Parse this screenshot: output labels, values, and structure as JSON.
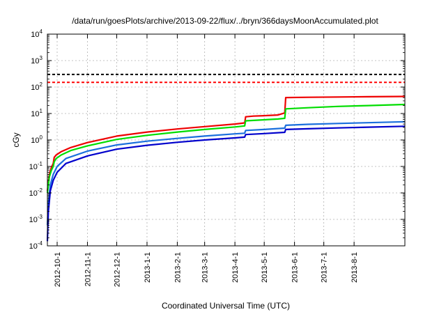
{
  "chart_data": {
    "type": "line",
    "title": "/data/run/goesPlots/archive/2013-09-22/flux/../bryn/366daysMoonAccumulated.plot",
    "xlabel": "Coordinated Universal Time (UTC)",
    "ylabel": "cGy",
    "y_scale": "log",
    "ylim": [
      0.0001,
      10000
    ],
    "xlim": [
      "2012-09-21",
      "2013-09-22"
    ],
    "grid": true,
    "y_ticks": [
      {
        "value": 0.0001,
        "mantissa": "10",
        "exp": "-4"
      },
      {
        "value": 0.001,
        "mantissa": "10",
        "exp": "-3"
      },
      {
        "value": 0.01,
        "mantissa": "10",
        "exp": "-2"
      },
      {
        "value": 0.1,
        "mantissa": "10",
        "exp": "-1"
      },
      {
        "value": 1,
        "mantissa": "10",
        "exp": "0"
      },
      {
        "value": 10,
        "mantissa": "10",
        "exp": "1"
      },
      {
        "value": 100,
        "mantissa": "10",
        "exp": "2"
      },
      {
        "value": 1000,
        "mantissa": "10",
        "exp": "3"
      },
      {
        "value": 10000,
        "mantissa": "10",
        "exp": "4"
      }
    ],
    "x_ticks": [
      {
        "date": "2012-10-01",
        "label": "2012-10-1"
      },
      {
        "date": "2012-11-01",
        "label": "2012-11-1"
      },
      {
        "date": "2012-12-01",
        "label": "2012-12-1"
      },
      {
        "date": "2013-01-01",
        "label": "2013-1-1"
      },
      {
        "date": "2013-02-01",
        "label": "2013-2-1"
      },
      {
        "date": "2013-03-01",
        "label": "2013-3-1"
      },
      {
        "date": "2013-04-01",
        "label": "2013-4-1"
      },
      {
        "date": "2013-05-01",
        "label": "2013-5-1"
      },
      {
        "date": "2013-06-01",
        "label": "2013-6-1"
      },
      {
        "date": "2013-07-01",
        "label": "2013-7-1"
      },
      {
        "date": "2013-08-01",
        "label": "2013-8-1"
      }
    ],
    "reference_lines": [
      {
        "value": 300,
        "color": "#000000",
        "style": "dashed"
      },
      {
        "value": 150,
        "color": "#ff0000",
        "style": "dashed"
      }
    ],
    "series": [
      {
        "color": "#ee0000",
        "points": [
          [
            "2012-09-21",
            0.012
          ],
          [
            "2012-09-23",
            0.05
          ],
          [
            "2012-09-25",
            0.09
          ],
          [
            "2012-09-27",
            0.13
          ],
          [
            "2012-09-28",
            0.22
          ],
          [
            "2012-09-30",
            0.27
          ],
          [
            "2012-10-05",
            0.36
          ],
          [
            "2012-10-15",
            0.52
          ],
          [
            "2012-11-01",
            0.8
          ],
          [
            "2012-12-01",
            1.4
          ],
          [
            "2013-01-01",
            2.0
          ],
          [
            "2013-02-01",
            2.6
          ],
          [
            "2013-03-01",
            3.2
          ],
          [
            "2013-04-01",
            4.0
          ],
          [
            "2013-04-11",
            4.4
          ],
          [
            "2013-04-12",
            7.5
          ],
          [
            "2013-04-20",
            8.0
          ],
          [
            "2013-05-01",
            8.3
          ],
          [
            "2013-05-15",
            8.8
          ],
          [
            "2013-05-22",
            10.5
          ],
          [
            "2013-05-23",
            40
          ],
          [
            "2013-06-15",
            41
          ],
          [
            "2013-07-15",
            42
          ],
          [
            "2013-08-15",
            43
          ],
          [
            "2013-09-22",
            44
          ]
        ]
      },
      {
        "color": "#00dd00",
        "points": [
          [
            "2012-09-21",
            0.01
          ],
          [
            "2012-09-23",
            0.04
          ],
          [
            "2012-09-25",
            0.07
          ],
          [
            "2012-09-27",
            0.1
          ],
          [
            "2012-09-28",
            0.15
          ],
          [
            "2012-09-30",
            0.2
          ],
          [
            "2012-10-05",
            0.27
          ],
          [
            "2012-10-15",
            0.4
          ],
          [
            "2012-11-01",
            0.6
          ],
          [
            "2012-12-01",
            1.05
          ],
          [
            "2013-01-01",
            1.5
          ],
          [
            "2013-02-01",
            2.0
          ],
          [
            "2013-03-01",
            2.5
          ],
          [
            "2013-04-01",
            3.1
          ],
          [
            "2013-04-11",
            3.4
          ],
          [
            "2013-04-12",
            5.3
          ],
          [
            "2013-05-01",
            5.8
          ],
          [
            "2013-05-15",
            6.2
          ],
          [
            "2013-05-22",
            6.6
          ],
          [
            "2013-05-23",
            15
          ],
          [
            "2013-06-15",
            16.5
          ],
          [
            "2013-07-15",
            18.5
          ],
          [
            "2013-08-15",
            20
          ],
          [
            "2013-09-22",
            22
          ]
        ]
      },
      {
        "color": "#1a6fdd",
        "points": [
          [
            "2012-09-21",
            0.0006
          ],
          [
            "2012-09-22",
            0.004
          ],
          [
            "2012-09-24",
            0.02
          ],
          [
            "2012-09-27",
            0.05
          ],
          [
            "2012-10-01",
            0.1
          ],
          [
            "2012-10-10",
            0.2
          ],
          [
            "2012-11-01",
            0.38
          ],
          [
            "2012-12-01",
            0.65
          ],
          [
            "2013-01-01",
            0.9
          ],
          [
            "2013-02-01",
            1.15
          ],
          [
            "2013-03-01",
            1.4
          ],
          [
            "2013-04-01",
            1.7
          ],
          [
            "2013-04-11",
            1.8
          ],
          [
            "2013-04-12",
            2.3
          ],
          [
            "2013-05-01",
            2.5
          ],
          [
            "2013-05-22",
            2.8
          ],
          [
            "2013-05-23",
            3.6
          ],
          [
            "2013-06-15",
            3.9
          ],
          [
            "2013-07-15",
            4.2
          ],
          [
            "2013-08-15",
            4.5
          ],
          [
            "2013-09-22",
            4.9
          ]
        ]
      },
      {
        "color": "#0000cc",
        "points": [
          [
            "2012-09-21",
            0.00015
          ],
          [
            "2012-09-22",
            0.002
          ],
          [
            "2012-09-24",
            0.012
          ],
          [
            "2012-09-27",
            0.03
          ],
          [
            "2012-10-01",
            0.06
          ],
          [
            "2012-10-10",
            0.13
          ],
          [
            "2012-11-01",
            0.25
          ],
          [
            "2012-12-01",
            0.45
          ],
          [
            "2013-01-01",
            0.63
          ],
          [
            "2013-02-01",
            0.82
          ],
          [
            "2013-03-01",
            1.0
          ],
          [
            "2013-04-01",
            1.2
          ],
          [
            "2013-04-11",
            1.28
          ],
          [
            "2013-04-12",
            1.6
          ],
          [
            "2013-05-01",
            1.75
          ],
          [
            "2013-05-22",
            1.95
          ],
          [
            "2013-05-23",
            2.5
          ],
          [
            "2013-06-15",
            2.65
          ],
          [
            "2013-07-15",
            2.85
          ],
          [
            "2013-08-15",
            3.05
          ],
          [
            "2013-09-22",
            3.3
          ]
        ]
      }
    ]
  }
}
